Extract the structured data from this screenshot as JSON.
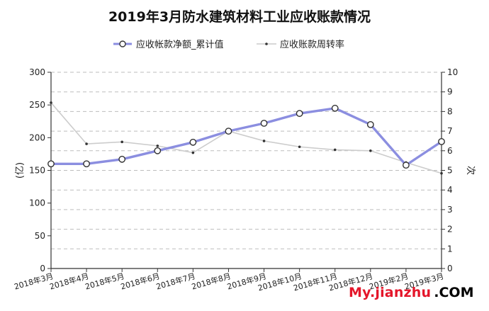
{
  "chart_data": {
    "type": "line",
    "title": "2019年3月防水建筑材料工业应收账款情况",
    "categories": [
      "2018年3月",
      "2018年4月",
      "2018年5月",
      "2018年6月",
      "2018年7月",
      "2018年8月",
      "2018年9月",
      "2018年10月",
      "2018年11月",
      "2018年12月",
      "2019年2月",
      "2019年3月"
    ],
    "ylabel_left": "(亿)",
    "ylabel_right": "次",
    "ylim_left": [
      0,
      300
    ],
    "ylim_right": [
      0,
      10
    ],
    "yticks_left": [
      0,
      50,
      100,
      150,
      200,
      250,
      300
    ],
    "yticks_right": [
      0,
      1,
      2,
      3,
      4,
      5,
      6,
      7,
      8,
      9,
      10
    ],
    "grid": true,
    "legend_position": "top-center",
    "series": [
      {
        "name": "应收帐款净额_累计值",
        "axis": "left",
        "color": "#8b8ee0",
        "values": [
          160,
          160,
          167,
          180,
          193,
          210,
          222,
          237,
          245,
          220,
          158,
          194
        ]
      },
      {
        "name": "应收账款周转率",
        "axis": "right",
        "color": "#cccccc",
        "values": [
          8.45,
          6.35,
          6.45,
          6.25,
          5.9,
          7.0,
          6.5,
          6.2,
          6.05,
          6.0,
          5.4,
          4.85
        ]
      }
    ]
  },
  "watermark": {
    "main": "My.jianzhu",
    "suffix": ".COM"
  }
}
